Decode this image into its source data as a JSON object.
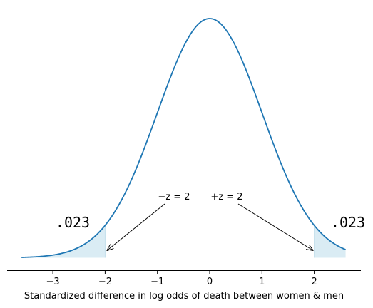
{
  "chart_data": {
    "type": "line",
    "title": "",
    "xlabel": "Standardized difference in log odds of death between women & men",
    "ylabel": "",
    "xlim": [
      -3.6,
      2.6
    ],
    "x_ticks": [
      -3,
      -2,
      -1,
      0,
      1,
      2
    ],
    "x_tick_labels": [
      "−3",
      "−2",
      "−1",
      "0",
      "1",
      "2"
    ],
    "series": [
      {
        "distribution": "standard normal pdf",
        "x_start": -3.6,
        "x_end": 2.6,
        "color": "#1f77b4"
      }
    ],
    "shaded_regions": [
      {
        "from": -3.6,
        "to": -2,
        "color": "#d4e9f2"
      },
      {
        "from": 2,
        "to": 2.6,
        "color": "#d4e9f2"
      }
    ],
    "tail_labels": [
      {
        "text": ".023",
        "side": "left"
      },
      {
        "text": ".023",
        "side": "right"
      }
    ],
    "annotations": [
      {
        "text": "−z = 2",
        "points_to_x": -2
      },
      {
        "text": "+z = 2",
        "points_to_x": 2
      }
    ],
    "grid": false,
    "spines": "bottom only"
  }
}
